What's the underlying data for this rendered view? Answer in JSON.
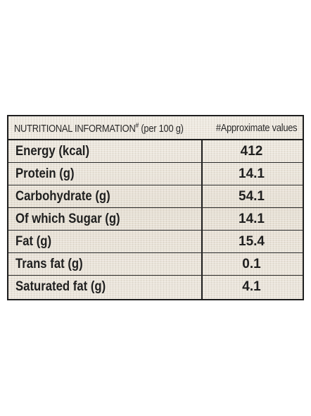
{
  "header": {
    "left_title": "NUTRITIONAL INFORMATION",
    "left_marker": "#",
    "left_suffix": " (per 100 g)",
    "right_title": "#Approximate values"
  },
  "rows": [
    {
      "nutrient": "Energy (kcal)",
      "value": "412"
    },
    {
      "nutrient": "Protein (g)",
      "value": "14.1"
    },
    {
      "nutrient": "Carbohydrate (g)",
      "value": "54.1"
    },
    {
      "nutrient": "Of which Sugar (g)",
      "value": "14.1"
    },
    {
      "nutrient": "Fat (g)",
      "value": "15.4"
    },
    {
      "nutrient": "Trans fat (g)",
      "value": "0.1"
    },
    {
      "nutrient": "Saturated fat (g)",
      "value": "4.1"
    }
  ]
}
